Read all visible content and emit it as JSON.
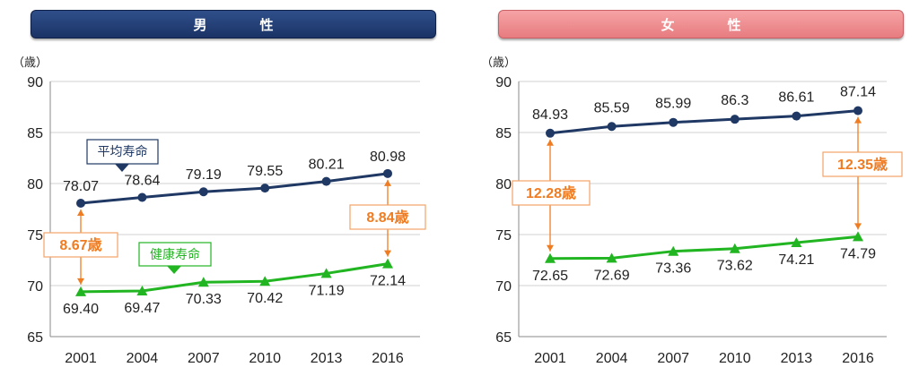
{
  "chart_data": [
    {
      "type": "line",
      "title": "男　性",
      "unit_label": "（歳）",
      "ylim": [
        65,
        90
      ],
      "yticks": [
        "65",
        "70",
        "75",
        "80",
        "85",
        "90"
      ],
      "categories": [
        "2001",
        "2004",
        "2007",
        "2010",
        "2013",
        "2016"
      ],
      "series": [
        {
          "name": "平均寿命",
          "color": "#1f3864",
          "marker": "circle",
          "values": [
            78.07,
            78.64,
            79.19,
            79.55,
            80.21,
            80.98
          ],
          "labels": [
            "78.07",
            "78.64",
            "79.19",
            "79.55",
            "80.21",
            "80.98"
          ]
        },
        {
          "name": "健康寿命",
          "color": "#22b522",
          "marker": "triangle",
          "values": [
            69.4,
            69.47,
            70.33,
            70.42,
            71.19,
            72.14
          ],
          "labels": [
            "69.40",
            "69.47",
            "70.33",
            "70.42",
            "71.19",
            "72.14"
          ]
        }
      ],
      "gaps": [
        {
          "label": "8.67歳",
          "category": "2001"
        },
        {
          "label": "8.84歳",
          "category": "2016"
        }
      ]
    },
    {
      "type": "line",
      "title": "女　性",
      "unit_label": "（歳）",
      "ylim": [
        65,
        90
      ],
      "yticks": [
        "65",
        "70",
        "75",
        "80",
        "85",
        "90"
      ],
      "categories": [
        "2001",
        "2004",
        "2007",
        "2010",
        "2013",
        "2016"
      ],
      "series": [
        {
          "name": "平均寿命",
          "color": "#1f3864",
          "marker": "circle",
          "values": [
            84.93,
            85.59,
            85.99,
            86.3,
            86.61,
            87.14
          ],
          "labels": [
            "84.93",
            "85.59",
            "85.99",
            "86.3",
            "86.61",
            "87.14"
          ]
        },
        {
          "name": "健康寿命",
          "color": "#22b522",
          "marker": "triangle",
          "values": [
            72.65,
            72.69,
            73.36,
            73.62,
            74.21,
            74.79
          ],
          "labels": [
            "72.65",
            "72.69",
            "73.36",
            "73.62",
            "74.21",
            "74.79"
          ]
        }
      ],
      "gaps": [
        {
          "label": "12.28歳",
          "category": "2001"
        },
        {
          "label": "12.35歳",
          "category": "2016"
        }
      ]
    }
  ],
  "colors": {
    "gap_text": "#f07c22",
    "gap_border": "#f4a468"
  }
}
